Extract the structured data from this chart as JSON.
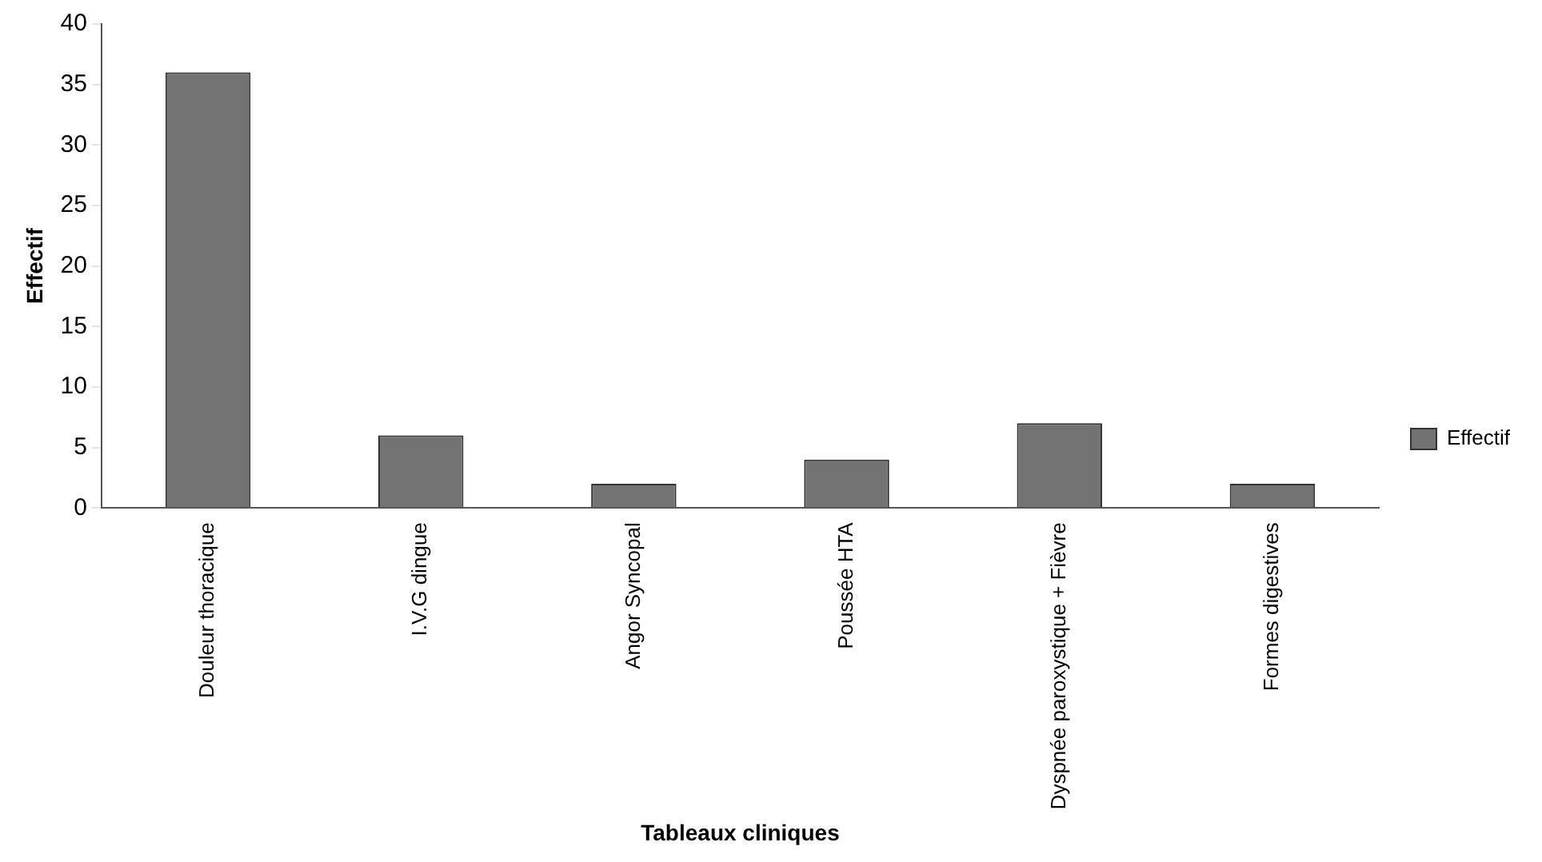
{
  "chart_data": {
    "type": "bar",
    "xlabel": "Tableaux cliniques",
    "ylabel": "Effectif",
    "categories": [
      "Douleur thoracique",
      "I.V.G dingue",
      "Angor Syncopal",
      "Poussée HTA",
      "Dyspnée paroxystique + Fièvre",
      "Formes digestives"
    ],
    "series": [
      {
        "name": "Effectif",
        "color": "#737373",
        "values": [
          36,
          6,
          2,
          4,
          7,
          2
        ]
      }
    ],
    "ylim": [
      0,
      40
    ],
    "yticks": [
      0,
      5,
      10,
      15,
      20,
      25,
      30,
      35,
      40
    ],
    "grid": false,
    "legend": "right"
  }
}
